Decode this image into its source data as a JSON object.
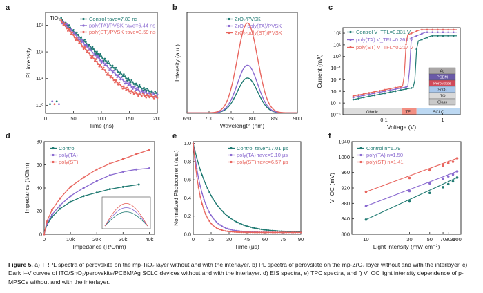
{
  "colors": {
    "control": "#1f7a72",
    "ta": "#8a6ad0",
    "st": "#e8655e",
    "axis": "#222222",
    "ohmic_bg": "#dddddd",
    "tfl_bg": "#f28e82",
    "sclc_bg": "#bcd8f2"
  },
  "caption": {
    "figure_label": "Figure 5.",
    "text": "a) TRPL spectra of perovskite on the mp-TiO₂ layer without and with the interlayer. b) PL spectra of perovskite on the mp-ZrO₂ layer without and with the interlayer. c) Dark I–V curves of ITO/SnO₂/perovskite/PCBM/Ag SCLC devices without and with the interlayer. d) EIS spectra, e) TPC spectra, and f) V_OC light intensity dependence of p-MPSCs without and with the interlayer."
  },
  "chart_data": [
    {
      "panel": "a",
      "type": "scatter",
      "annotation": "TiO₂",
      "xlabel": "Time (ns)",
      "ylabel": "PL intensity",
      "xlim": [
        0,
        200
      ],
      "ylim": [
        0.5,
        3000
      ],
      "yscale": "log",
      "xticks": [
        "0",
        "50",
        "100",
        "150",
        "200"
      ],
      "yticks": [
        "10⁰",
        "10¹",
        "10²",
        "10³"
      ],
      "series": [
        {
          "name": "Control",
          "legend": "Control   τave=7.83 ns",
          "tau": 7.83,
          "decay": 0.045,
          "peak": 1600,
          "x": [
            28,
            40,
            60,
            80,
            100,
            120,
            140,
            160,
            180,
            200
          ],
          "y": [
            1600,
            950,
            420,
            190,
            85,
            38,
            18,
            10,
            6,
            4
          ]
        },
        {
          "name": "poly(TA)/PVSK",
          "legend": "poly(TA)/PVSK τave=6.44 ns",
          "tau": 6.44,
          "decay": 0.049,
          "peak": 1500,
          "x": [
            28,
            40,
            60,
            80,
            100,
            120,
            140,
            160,
            180,
            200
          ],
          "y": [
            1500,
            850,
            330,
            140,
            58,
            25,
            11,
            6,
            4,
            3
          ]
        },
        {
          "name": "poly(ST)/PVSK",
          "legend": "poly(ST)/PVSK τave=3.59 ns",
          "tau": 3.59,
          "decay": 0.056,
          "peak": 1400,
          "x": [
            28,
            40,
            60,
            80,
            100,
            120,
            140,
            160,
            180,
            200
          ],
          "y": [
            1400,
            700,
            230,
            80,
            30,
            12,
            5,
            3,
            2,
            2
          ]
        }
      ]
    },
    {
      "panel": "b",
      "type": "line",
      "xlabel": "Wavelength (nm)",
      "ylabel": "Intensity (a.u.)",
      "xlim": [
        650,
        900
      ],
      "ylim": [
        0,
        1.1
      ],
      "xticks": [
        "650",
        "700",
        "750",
        "800",
        "850",
        "900"
      ],
      "series": [
        {
          "name": "ZrO₂/PVSK",
          "peak_nm": 787,
          "peak": 0.38,
          "width": 23
        },
        {
          "name": "ZrO₂-poly(TA)/PVSK",
          "peak_nm": 787,
          "peak": 0.52,
          "width": 23
        },
        {
          "name": "ZrO₂-poly(ST)/PVSK",
          "peak_nm": 787,
          "peak": 0.98,
          "width": 23
        }
      ]
    },
    {
      "panel": "c",
      "type": "line",
      "xlabel": "Voltage (V)",
      "ylabel": "Current (mA)",
      "xscale": "log",
      "yscale": "log",
      "xlim": [
        0.02,
        2
      ],
      "ylim": [
        1e-05,
        300
      ],
      "xticks": [
        "0.1",
        "1"
      ],
      "yticks": [
        "10²",
        "10¹",
        "10⁰",
        "10⁻¹",
        "10⁻²",
        "10⁻³",
        "10⁻⁴",
        "10⁻⁵"
      ],
      "regions": [
        "Ohmic",
        "TFL",
        "SCLC"
      ],
      "device_layers": [
        "Ag",
        "PCBM",
        "Perovskite",
        "SnO₂",
        "ITO",
        "Glass"
      ],
      "series": [
        {
          "name": "Control",
          "legend": "Control  V_TFL=0.331 V",
          "vtfl": 0.331,
          "i0": 0.0002,
          "top": 60
        },
        {
          "name": "poly(TA)",
          "legend": "poly(TA) V_TFL=0.263 V",
          "vtfl": 0.263,
          "i0": 0.0003,
          "top": 120
        },
        {
          "name": "poly(ST)",
          "legend": "poly(ST) V_TFL=0.217 V",
          "vtfl": 0.217,
          "i0": 0.0004,
          "top": 200
        }
      ]
    },
    {
      "panel": "d",
      "type": "line",
      "xlabel": "Impedance (R/Ohm)",
      "ylabel": "Impedance (I/Ohm)",
      "xlim": [
        0,
        42000
      ],
      "ylim": [
        0,
        80
      ],
      "xticks": [
        "0",
        "10k",
        "20k",
        "30k",
        "40k"
      ],
      "series": [
        {
          "name": "Control",
          "x": [
            0,
            1000,
            3000,
            6000,
            10000,
            15000,
            20000,
            25000,
            30000,
            36000
          ],
          "y": [
            0,
            8,
            15,
            22,
            28,
            33,
            36,
            39,
            41,
            43
          ]
        },
        {
          "name": "poly(TA)",
          "x": [
            0,
            1000,
            3000,
            6000,
            10000,
            15000,
            20000,
            25000,
            30000,
            35000,
            40000
          ],
          "y": [
            0,
            9,
            17,
            25,
            33,
            40,
            46,
            51,
            54,
            56,
            57
          ]
        },
        {
          "name": "poly(ST)",
          "x": [
            0,
            1000,
            3000,
            6000,
            10000,
            15000,
            20000,
            25000,
            30000,
            35000,
            40000
          ],
          "y": [
            0,
            11,
            21,
            31,
            41,
            49,
            56,
            61,
            65,
            69,
            73
          ]
        }
      ]
    },
    {
      "panel": "e",
      "type": "line",
      "xlabel": "Time (μs)",
      "ylabel": "Normalized Photocurrent (a.u.)",
      "xlim": [
        0,
        90
      ],
      "ylim": [
        0,
        1.02
      ],
      "xticks": [
        "0",
        "15",
        "30",
        "45",
        "60",
        "75",
        "90"
      ],
      "yticks": [
        "0.0",
        "0.2",
        "0.4",
        "0.6",
        "0.8",
        "1.0"
      ],
      "series": [
        {
          "name": "Control",
          "legend": "Control  τave=17.01 μs",
          "tau": 17.01
        },
        {
          "name": "poly(TA)",
          "legend": "poly(TA)  τave=9.10 μs",
          "tau": 9.1
        },
        {
          "name": "poly(ST)",
          "legend": "poly(ST)  τave=6.57 μs",
          "tau": 6.57
        }
      ]
    },
    {
      "panel": "f",
      "type": "scatter",
      "xlabel": "Light intensity (mW·cm⁻²)",
      "ylabel": "V_OC (mV)",
      "xscale": "log",
      "xlim": [
        7,
        110
      ],
      "ylim": [
        800,
        1040
      ],
      "xticks": [
        "10",
        "30",
        "50",
        "70",
        "80",
        "90",
        "100"
      ],
      "yticks": [
        "800",
        "840",
        "880",
        "920",
        "960",
        "1000",
        "1040"
      ],
      "series": [
        {
          "name": "Control",
          "legend": "Control   n=1.79",
          "n": 1.79,
          "x": [
            10,
            30,
            50,
            70,
            80,
            90,
            100
          ],
          "y": [
            838,
            885,
            907,
            922,
            930,
            937,
            947
          ]
        },
        {
          "name": "poly(TA)",
          "legend": "poly(TA) n=1.50",
          "n": 1.5,
          "x": [
            10,
            30,
            50,
            70,
            80,
            90,
            100
          ],
          "y": [
            873,
            912,
            932,
            944,
            950,
            955,
            963
          ]
        },
        {
          "name": "poly(ST)",
          "legend": "poly(ST) n=1.41",
          "n": 1.41,
          "x": [
            10,
            30,
            50,
            70,
            80,
            90,
            100
          ],
          "y": [
            910,
            946,
            966,
            978,
            984,
            988,
            997
          ]
        }
      ]
    }
  ]
}
